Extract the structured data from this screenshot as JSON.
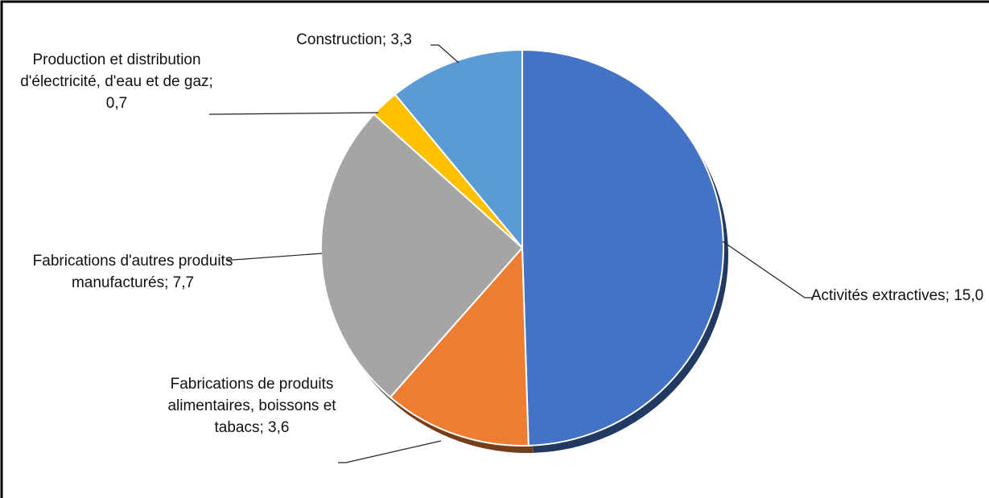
{
  "chart_data": {
    "type": "pie",
    "value_labels": [
      "Activités extractives; 15,0",
      "Fabrications de produits alimentaires, boissons et tabacs; 3,6",
      "Fabrications d'autres produits manufacturés; 7,7",
      "Production et distribution d'électricité, d'eau et de gaz; 0,7",
      "Construction; 3,3"
    ],
    "values": [
      15.0,
      3.6,
      7.7,
      0.7,
      3.3
    ],
    "colors": [
      "#4472c4",
      "#ed7d31",
      "#a5a5a5",
      "#ffc000",
      "#5b9bd5"
    ]
  }
}
